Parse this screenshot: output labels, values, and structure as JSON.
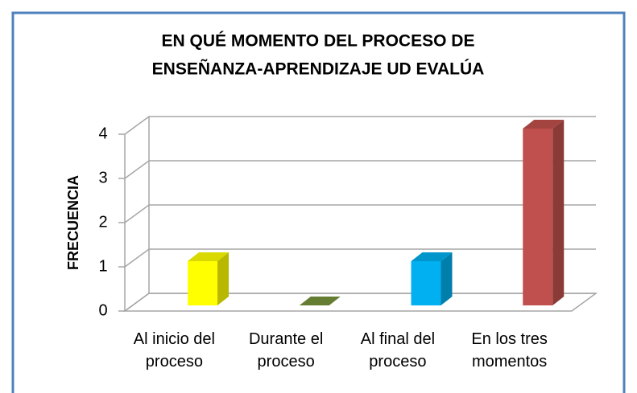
{
  "chart_data": {
    "type": "bar3d",
    "title": [
      "EN QUÉ MOMENTO DEL PROCESO DE",
      "ENSEÑANZA-APRENDIZAJE UD EVALÚA"
    ],
    "y_label": "FRECUENCIA",
    "categories": [
      "Al inicio del proceso",
      "Durante el proceso",
      "Al final del proceso",
      "En los tres momentos"
    ],
    "values": [
      1,
      0,
      1,
      4
    ],
    "colors": [
      "#ffff00",
      "#77933c",
      "#00b0f0",
      "#c0504d"
    ],
    "ylim": [
      0,
      4
    ],
    "yticks": [
      0,
      1,
      2,
      3,
      4
    ],
    "grid": true
  }
}
